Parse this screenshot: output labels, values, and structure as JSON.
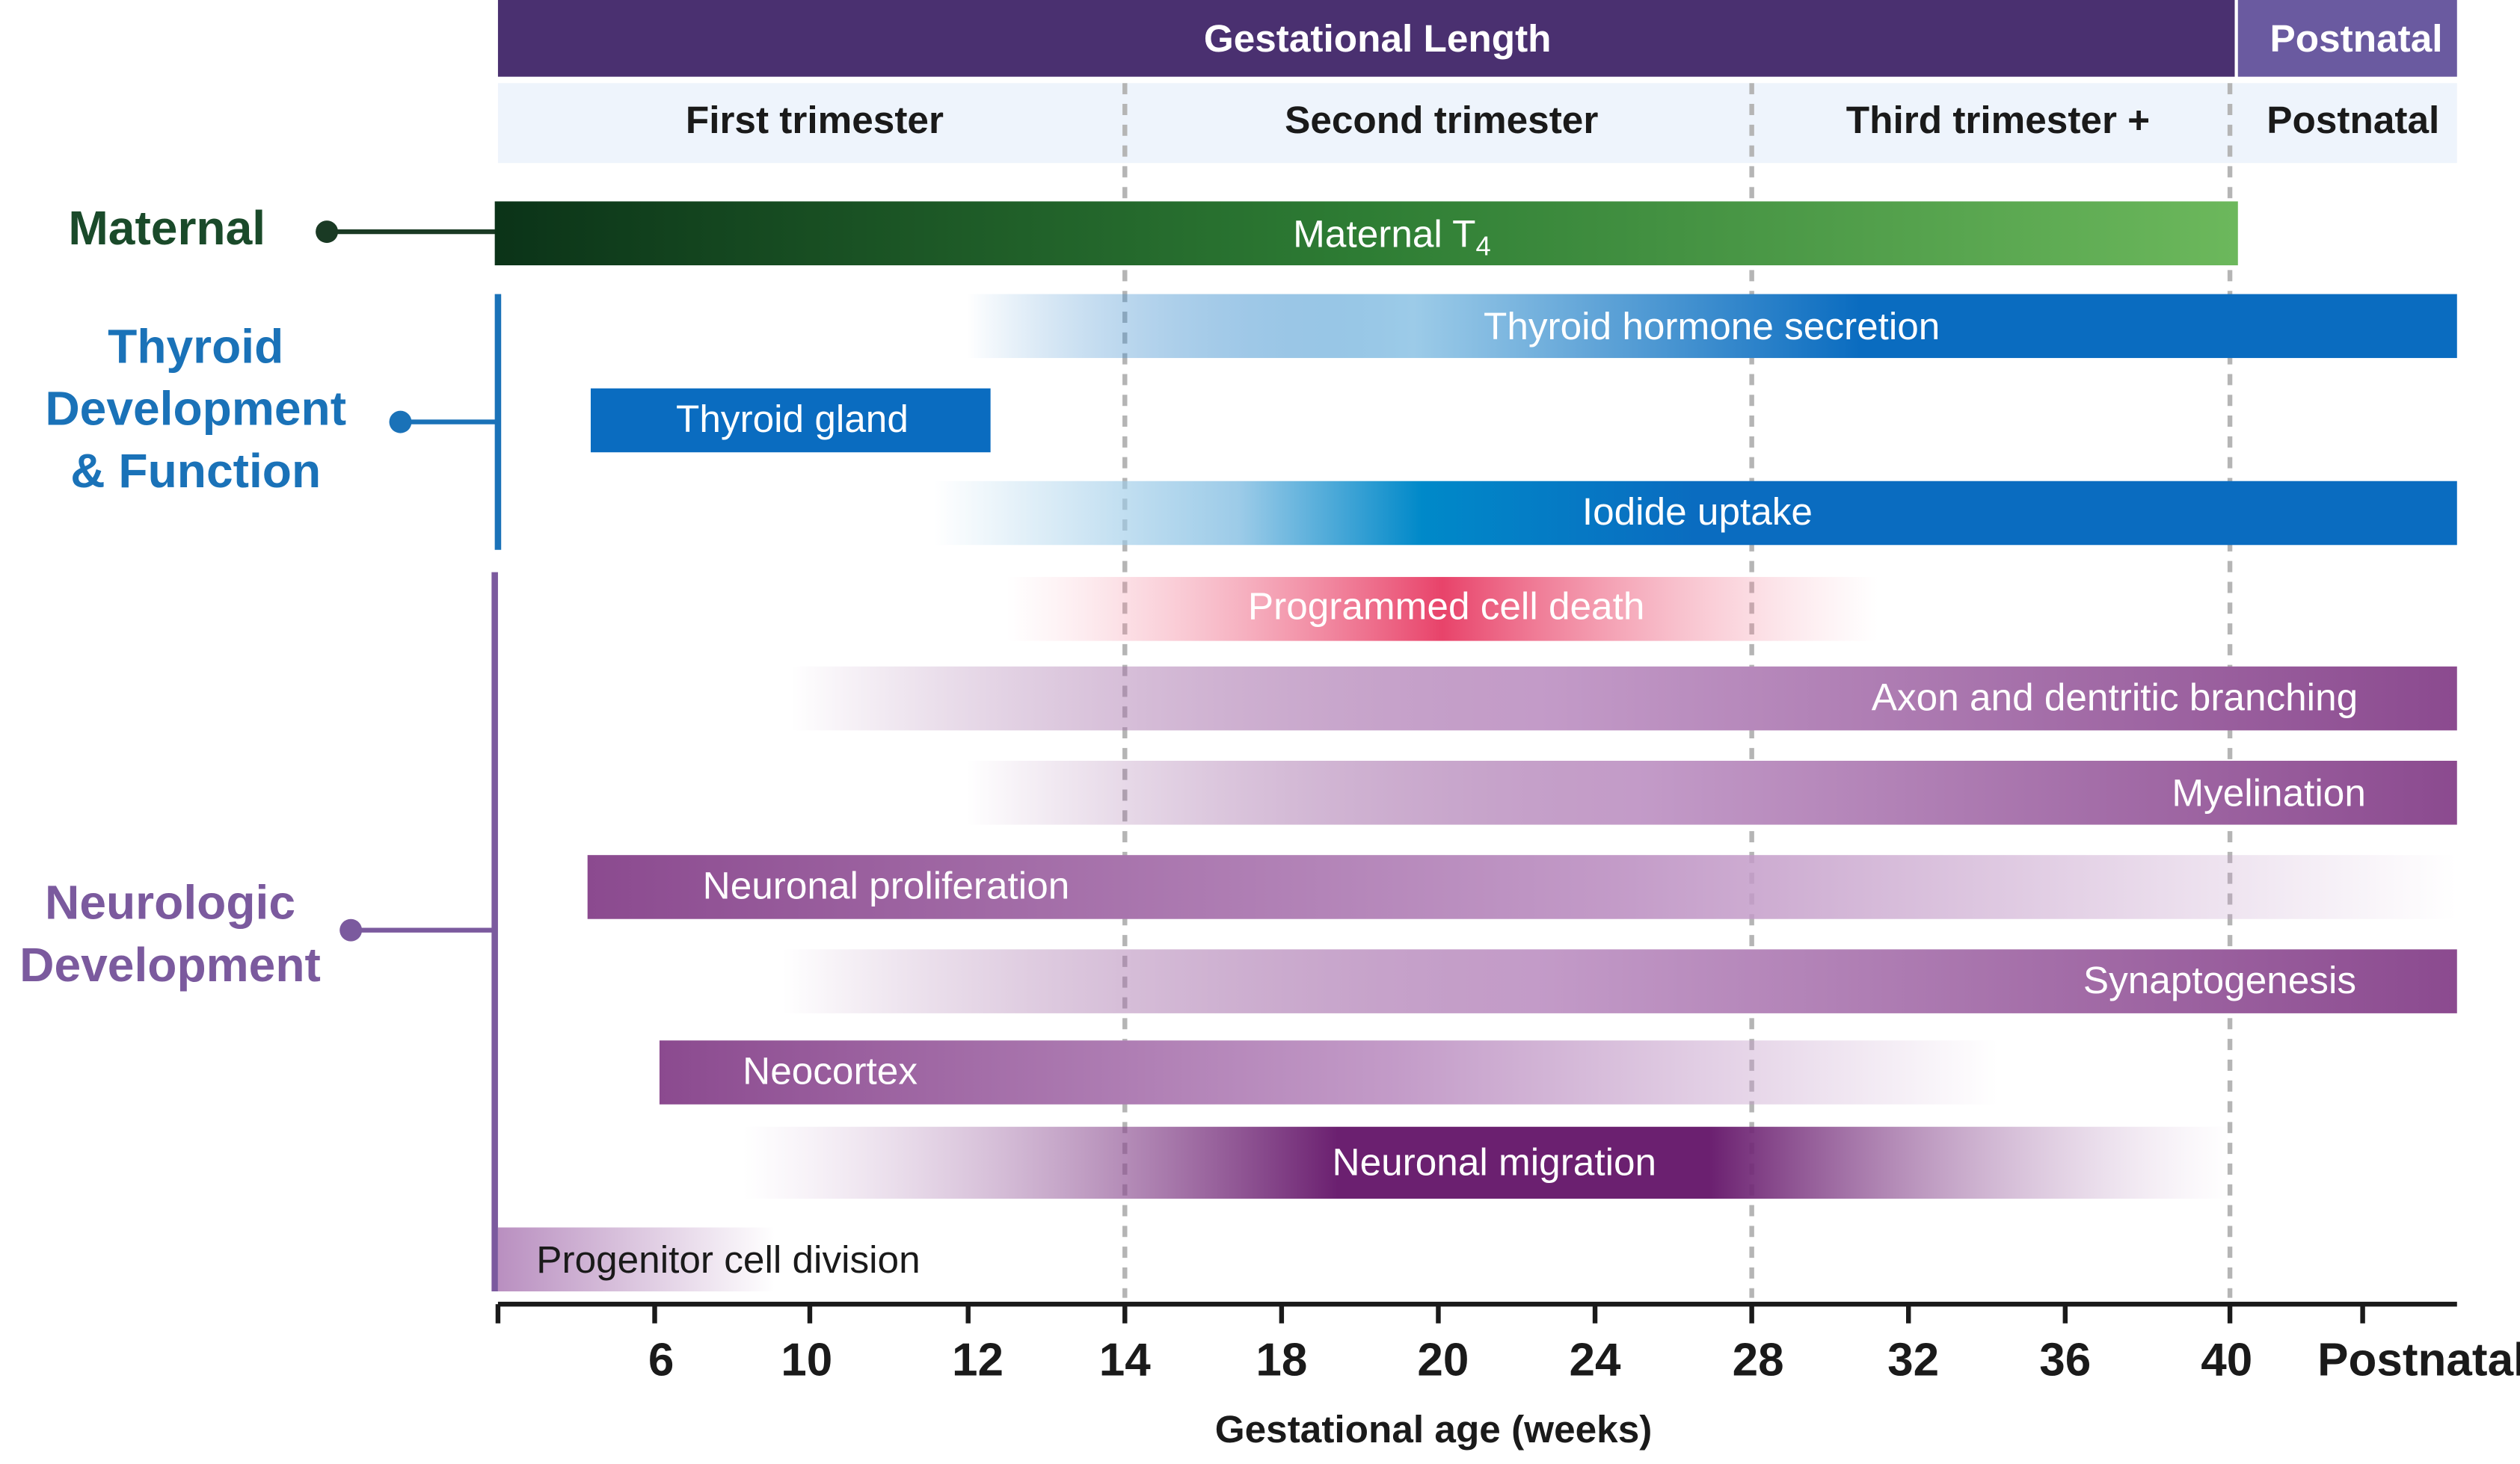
{
  "header": {
    "title": "Gestational Length",
    "postnatal": "Postnatal"
  },
  "periods": [
    "First trimester",
    "Second trimester",
    "Third trimester +",
    "Postnatal"
  ],
  "groups": [
    {
      "lines": [
        "Maternal"
      ]
    },
    {
      "lines": [
        "Thyroid",
        "Development",
        "& Function"
      ]
    },
    {
      "lines": [
        "Neurologic",
        "Development"
      ]
    }
  ],
  "bars": [
    {
      "text": "Maternal T",
      "subscript": "4"
    },
    {
      "text": "Thyroid hormone secretion"
    },
    {
      "text": "Thyroid gland"
    },
    {
      "text": "Iodide uptake"
    },
    {
      "text": "Programmed cell death"
    },
    {
      "text": "Axon and dentritic branching"
    },
    {
      "text": "Myelination"
    },
    {
      "text": "Neuronal proliferation"
    },
    {
      "text": "Synaptogenesis"
    },
    {
      "text": "Neocortex"
    },
    {
      "text": "Neuronal migration"
    },
    {
      "text": "Progenitor cell division"
    }
  ],
  "axis": {
    "ticks": [
      "6",
      "10",
      "12",
      "14",
      "18",
      "20",
      "24",
      "28",
      "32",
      "36",
      "40",
      "Postnatal"
    ],
    "title": "Gestational age (weeks)"
  }
}
